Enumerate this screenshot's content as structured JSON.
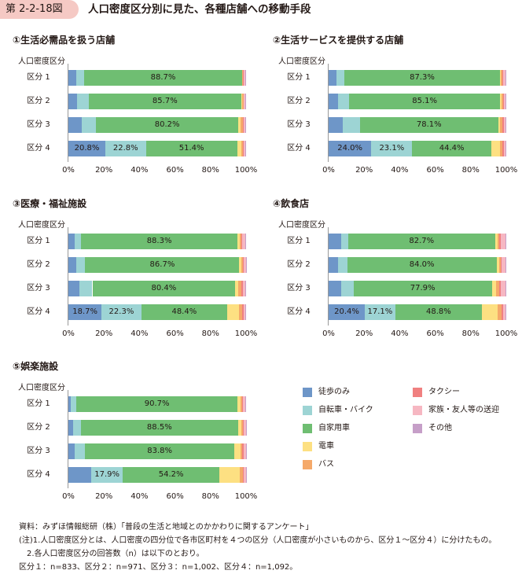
{
  "figure": {
    "label": "第 2-2-18図",
    "title": "人口密度区分別に見た、各種店舗への移動手段"
  },
  "legend": [
    {
      "name": "徒歩のみ",
      "color": "#6e96c8"
    },
    {
      "name": "自転車・バイク",
      "color": "#9dd4d4"
    },
    {
      "name": "自家用車",
      "color": "#6fbe72"
    },
    {
      "name": "電車",
      "color": "#fde082"
    },
    {
      "name": "バス",
      "color": "#f5a96a"
    },
    {
      "name": "タクシー",
      "color": "#f08080"
    },
    {
      "name": "家族・友人等の送迎",
      "color": "#f6b7c2"
    },
    {
      "name": "その他",
      "color": "#c69fc8"
    }
  ],
  "chart_data": [
    {
      "type": "bar",
      "orientation": "horizontal",
      "stacked": true,
      "title": "①生活必需品を扱う店舗",
      "ylabel": "人口密度区分",
      "categories": [
        "区分 1",
        "区分 2",
        "区分 3",
        "区分 4"
      ],
      "xticks": [
        "0%",
        "20%",
        "40%",
        "60%",
        "80%",
        "100%"
      ],
      "xlim": [
        0,
        100
      ],
      "series": [
        {
          "name": "徒歩のみ",
          "values": [
            4.5,
            5.0,
            7.5,
            20.8
          ],
          "labels": [
            "",
            "",
            "",
            "20.8%"
          ]
        },
        {
          "name": "自転車・バイク",
          "values": [
            4.5,
            6.5,
            8.0,
            22.8
          ],
          "labels": [
            "",
            "",
            "",
            "22.8%"
          ]
        },
        {
          "name": "自家用車",
          "values": [
            88.7,
            85.7,
            80.2,
            51.4
          ],
          "labels": [
            "88.7%",
            "85.7%",
            "80.2%",
            "51.4%"
          ]
        },
        {
          "name": "電車",
          "values": [
            0.3,
            0.7,
            1.1,
            2.5
          ],
          "labels": [
            "",
            "",
            "",
            ""
          ]
        },
        {
          "name": "バス",
          "values": [
            0.4,
            0.6,
            1.3,
            0.8
          ],
          "labels": [
            "",
            "",
            "",
            ""
          ]
        },
        {
          "name": "タクシー",
          "values": [
            0.2,
            0.2,
            0.4,
            0.3
          ],
          "labels": [
            "",
            "",
            "",
            ""
          ]
        },
        {
          "name": "家族・友人等の送迎",
          "values": [
            1.0,
            1.0,
            1.2,
            1.0
          ],
          "labels": [
            "",
            "",
            "",
            ""
          ]
        },
        {
          "name": "その他",
          "values": [
            0.4,
            0.3,
            0.3,
            0.4
          ],
          "labels": [
            "",
            "",
            "",
            ""
          ]
        }
      ]
    },
    {
      "type": "bar",
      "orientation": "horizontal",
      "stacked": true,
      "title": "②生活サービスを提供する店舗",
      "ylabel": "人口密度区分",
      "categories": [
        "区分 1",
        "区分 2",
        "区分 3",
        "区分 4"
      ],
      "xticks": [
        "0%",
        "20%",
        "40%",
        "60%",
        "80%",
        "100%"
      ],
      "xlim": [
        0,
        100
      ],
      "series": [
        {
          "name": "徒歩のみ",
          "values": [
            4.5,
            5.5,
            8.0,
            24.0
          ],
          "labels": [
            "",
            "",
            "",
            "24.0%"
          ]
        },
        {
          "name": "自転車・バイク",
          "values": [
            4.5,
            6.0,
            9.5,
            23.1
          ],
          "labels": [
            "",
            "",
            "",
            "23.1%"
          ]
        },
        {
          "name": "自家用車",
          "values": [
            87.3,
            85.1,
            78.1,
            44.4
          ],
          "labels": [
            "87.3%",
            "85.1%",
            "78.1%",
            "44.4%"
          ]
        },
        {
          "name": "電車",
          "values": [
            0.5,
            0.8,
            1.0,
            5.0
          ],
          "labels": [
            "",
            "",
            "",
            ""
          ]
        },
        {
          "name": "バス",
          "values": [
            0.8,
            0.8,
            1.2,
            1.5
          ],
          "labels": [
            "",
            "",
            "",
            ""
          ]
        },
        {
          "name": "タクシー",
          "values": [
            0.6,
            0.5,
            0.8,
            0.5
          ],
          "labels": [
            "",
            "",
            "",
            ""
          ]
        },
        {
          "name": "家族・友人等の送迎",
          "values": [
            1.2,
            1.0,
            1.1,
            1.0
          ],
          "labels": [
            "",
            "",
            "",
            ""
          ]
        },
        {
          "name": "その他",
          "values": [
            0.6,
            0.3,
            0.3,
            0.5
          ],
          "labels": [
            "",
            "",
            "",
            ""
          ]
        }
      ]
    },
    {
      "type": "bar",
      "orientation": "horizontal",
      "stacked": true,
      "title": "③医療・福祉施設",
      "ylabel": "人口密度区分",
      "categories": [
        "区分 1",
        "区分 2",
        "区分 3",
        "区分 4"
      ],
      "xticks": [
        "0%",
        "20%",
        "40%",
        "60%",
        "80%",
        "100%"
      ],
      "xlim": [
        0,
        100
      ],
      "series": [
        {
          "name": "徒歩のみ",
          "values": [
            3.5,
            4.5,
            6.0,
            18.7
          ],
          "labels": [
            "",
            "",
            "",
            "18.7%"
          ]
        },
        {
          "name": "自転車・バイク",
          "values": [
            3.5,
            5.0,
            7.5,
            22.3
          ],
          "labels": [
            "",
            "",
            "",
            "22.3%"
          ]
        },
        {
          "name": "自家用車",
          "values": [
            88.3,
            86.7,
            80.4,
            48.4
          ],
          "labels": [
            "88.3%",
            "86.7%",
            "80.4%",
            "48.4%"
          ]
        },
        {
          "name": "電車",
          "values": [
            1.0,
            1.0,
            1.5,
            6.5
          ],
          "labels": [
            "",
            "",
            "",
            ""
          ]
        },
        {
          "name": "バス",
          "values": [
            1.2,
            1.0,
            2.0,
            2.0
          ],
          "labels": [
            "",
            "",
            "",
            ""
          ]
        },
        {
          "name": "タクシー",
          "values": [
            0.5,
            0.6,
            1.0,
            0.8
          ],
          "labels": [
            "",
            "",
            "",
            ""
          ]
        },
        {
          "name": "家族・友人等の送迎",
          "values": [
            1.5,
            1.0,
            1.3,
            1.0
          ],
          "labels": [
            "",
            "",
            "",
            ""
          ]
        },
        {
          "name": "その他",
          "values": [
            0.5,
            0.2,
            0.3,
            0.3
          ],
          "labels": [
            "",
            "",
            "",
            ""
          ]
        }
      ]
    },
    {
      "type": "bar",
      "orientation": "horizontal",
      "stacked": true,
      "title": "④飲食店",
      "ylabel": "人口密度区分",
      "categories": [
        "区分 1",
        "区分 2",
        "区分 3",
        "区分 4"
      ],
      "xticks": [
        "0%",
        "20%",
        "40%",
        "60%",
        "80%",
        "100%"
      ],
      "xlim": [
        0,
        100
      ],
      "series": [
        {
          "name": "徒歩のみ",
          "values": [
            7.0,
            5.5,
            7.0,
            20.4
          ],
          "labels": [
            "",
            "",
            "",
            "20.4%"
          ]
        },
        {
          "name": "自転車・バイク",
          "values": [
            4.0,
            5.0,
            7.0,
            17.1
          ],
          "labels": [
            "",
            "",
            "",
            "17.1%"
          ]
        },
        {
          "name": "自家用車",
          "values": [
            82.7,
            84.0,
            77.9,
            48.8
          ],
          "labels": [
            "82.7%",
            "84.0%",
            "77.9%",
            "48.8%"
          ]
        },
        {
          "name": "電車",
          "values": [
            1.5,
            1.5,
            2.5,
            9.0
          ],
          "labels": [
            "",
            "",
            "",
            ""
          ]
        },
        {
          "name": "バス",
          "values": [
            1.0,
            0.8,
            1.5,
            2.0
          ],
          "labels": [
            "",
            "",
            "",
            ""
          ]
        },
        {
          "name": "タクシー",
          "values": [
            0.8,
            0.7,
            1.0,
            0.8
          ],
          "labels": [
            "",
            "",
            "",
            ""
          ]
        },
        {
          "name": "家族・友人等の送迎",
          "values": [
            2.5,
            2.2,
            2.8,
            1.5
          ],
          "labels": [
            "",
            "",
            "",
            ""
          ]
        },
        {
          "name": "その他",
          "values": [
            0.5,
            0.3,
            0.3,
            0.4
          ],
          "labels": [
            "",
            "",
            "",
            ""
          ]
        }
      ]
    },
    {
      "type": "bar",
      "orientation": "horizontal",
      "stacked": true,
      "title": "⑤娯楽施設",
      "ylabel": "人口密度区分",
      "categories": [
        "区分 1",
        "区分 2",
        "区分 3",
        "区分 4"
      ],
      "xticks": [
        "0%",
        "20%",
        "40%",
        "60%",
        "80%",
        "100%"
      ],
      "xlim": [
        0,
        100
      ],
      "series": [
        {
          "name": "徒歩のみ",
          "values": [
            1.5,
            2.5,
            3.5,
            12.8
          ],
          "labels": [
            "",
            "",
            "",
            ""
          ]
        },
        {
          "name": "自転車・バイク",
          "values": [
            3.0,
            4.5,
            6.0,
            17.9
          ],
          "labels": [
            "",
            "",
            "",
            "17.9%"
          ]
        },
        {
          "name": "自家用車",
          "values": [
            90.7,
            88.5,
            83.8,
            54.2
          ],
          "labels": [
            "90.7%",
            "88.5%",
            "83.8%",
            "54.2%"
          ]
        },
        {
          "name": "電車",
          "values": [
            1.8,
            2.0,
            3.5,
            11.5
          ],
          "labels": [
            "",
            "",
            "",
            ""
          ]
        },
        {
          "name": "バス",
          "values": [
            0.8,
            0.8,
            1.2,
            1.8
          ],
          "labels": [
            "",
            "",
            "",
            ""
          ]
        },
        {
          "name": "タクシー",
          "values": [
            0.4,
            0.5,
            0.6,
            0.6
          ],
          "labels": [
            "",
            "",
            "",
            ""
          ]
        },
        {
          "name": "家族・友人等の送迎",
          "values": [
            1.5,
            1.0,
            1.2,
            1.0
          ],
          "labels": [
            "",
            "",
            "",
            ""
          ]
        },
        {
          "name": "その他",
          "values": [
            0.3,
            0.2,
            0.2,
            0.2
          ],
          "labels": [
            "",
            "",
            "",
            ""
          ]
        }
      ]
    }
  ],
  "notes": [
    "資料：みずほ情報総研（株）「普段の生活と地域とのかかわりに関するアンケート」",
    "(注)1.人口密度区分とは、人口密度の四分位で各市区町村を４つの区分（人口密度が小さいものから、区分１～区分４）に分けたもの。",
    "2.各人口密度区分の回答数（n）は以下のとおり。",
    "区分１：n=833、区分２：n=971、区分３：n=1,002、区分４：n=1,092。"
  ]
}
